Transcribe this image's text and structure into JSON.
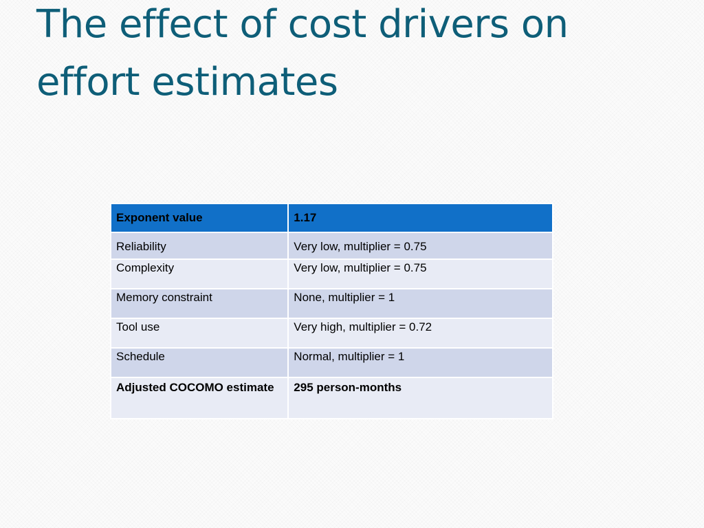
{
  "slide": {
    "title": "The effect of cost drivers on effort estimates"
  },
  "table": {
    "header": {
      "label": "Exponent value",
      "value": "1.17"
    },
    "rows": [
      {
        "label": "Reliability",
        "value": "Very low, multiplier = 0.75"
      },
      {
        "label": "Complexity",
        "value": "Very low, multiplier = 0.75"
      },
      {
        "label": "Memory constraint",
        "value": "None, multiplier = 1"
      },
      {
        "label": "Tool use",
        "value": "Very high, multiplier = 0.72"
      },
      {
        "label": "Schedule",
        "value": "Normal, multiplier = 1"
      },
      {
        "label": "Adjusted COCOMO estimate",
        "value": "295 person-months"
      }
    ]
  },
  "colors": {
    "title": "#0e5e78",
    "header_fill": "#1170c8",
    "row_dark": "#cfd6ea",
    "row_light": "#e8ebf5"
  }
}
